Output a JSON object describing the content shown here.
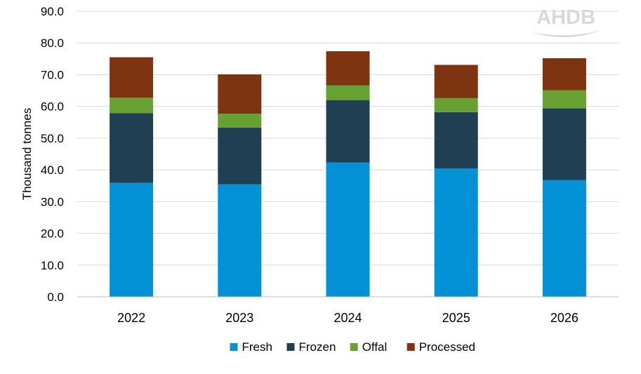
{
  "chart_data": {
    "type": "bar",
    "stacked": true,
    "title": "",
    "xlabel": "",
    "ylabel": "Thousand tonnes",
    "ylim": [
      0,
      90
    ],
    "ytick_step": 10,
    "ytick_labels": [
      "0.0",
      "10.0",
      "20.0",
      "30.0",
      "40.0",
      "50.0",
      "60.0",
      "70.0",
      "80.0",
      "90.0"
    ],
    "grid": true,
    "legend_position": "bottom",
    "watermark": "AHDB",
    "categories": [
      "2022",
      "2023",
      "2024",
      "2025",
      "2026"
    ],
    "series": [
      {
        "name": "Fresh",
        "color": "#0391d6",
        "values": [
          35.9,
          35.5,
          42.3,
          40.4,
          36.8
        ]
      },
      {
        "name": "Frozen",
        "color": "#203f52",
        "values": [
          22.0,
          17.8,
          19.7,
          17.8,
          22.6
        ]
      },
      {
        "name": "Offal",
        "color": "#66a132",
        "values": [
          4.9,
          4.4,
          4.6,
          4.4,
          5.7
        ]
      },
      {
        "name": "Processed",
        "color": "#7f3411",
        "values": [
          12.7,
          12.4,
          10.8,
          10.5,
          10.1
        ]
      }
    ]
  }
}
